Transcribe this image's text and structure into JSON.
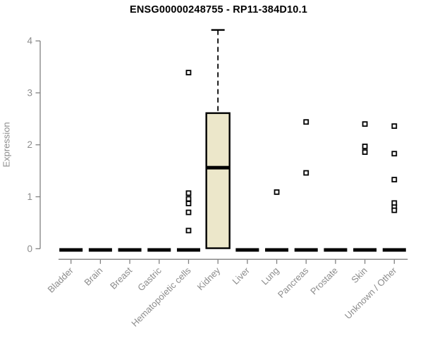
{
  "chart_data": {
    "type": "boxplot",
    "title": "ENSG00000248755 - RP11-384D10.1",
    "ylabel": "Expression",
    "xlabel": "",
    "ylim": [
      0,
      4.3
    ],
    "yticks": [
      0,
      1,
      2,
      3,
      4
    ],
    "grid": false,
    "legend": false,
    "categories": [
      "Bladder",
      "Brain",
      "Breast",
      "Gastric",
      "Hematopoietic cells",
      "Kidney",
      "Liver",
      "Lung",
      "Pancreas",
      "Prostate",
      "Skin",
      "Unknown / Other"
    ],
    "series": [
      {
        "category": "Bladder",
        "q1": 0,
        "median": 0,
        "q3": 0,
        "whisker_low": 0,
        "whisker_high": 0,
        "outliers": []
      },
      {
        "category": "Brain",
        "q1": 0,
        "median": 0,
        "q3": 0,
        "whisker_low": 0,
        "whisker_high": 0,
        "outliers": []
      },
      {
        "category": "Breast",
        "q1": 0,
        "median": 0,
        "q3": 0,
        "whisker_low": 0,
        "whisker_high": 0,
        "outliers": []
      },
      {
        "category": "Gastric",
        "q1": 0,
        "median": 0,
        "q3": 0,
        "whisker_low": 0,
        "whisker_high": 0,
        "outliers": []
      },
      {
        "category": "Hematopoietic cells",
        "q1": 0,
        "median": 0,
        "q3": 0,
        "whisker_low": 0,
        "whisker_high": 0,
        "outliers": [
          3.39,
          1.07,
          0.96,
          0.87,
          0.7,
          0.35
        ]
      },
      {
        "category": "Kidney",
        "q1": 0.01,
        "median": 1.56,
        "q3": 2.61,
        "whisker_low": 0.01,
        "whisker_high": 4.21,
        "outliers": []
      },
      {
        "category": "Liver",
        "q1": 0,
        "median": 0,
        "q3": 0,
        "whisker_low": 0,
        "whisker_high": 0,
        "outliers": []
      },
      {
        "category": "Lung",
        "q1": 0,
        "median": 0,
        "q3": 0,
        "whisker_low": 0,
        "whisker_high": 0,
        "outliers": [
          1.09
        ]
      },
      {
        "category": "Pancreas",
        "q1": 0,
        "median": 0,
        "q3": 0,
        "whisker_low": 0,
        "whisker_high": 0,
        "outliers": [
          2.44,
          1.46
        ]
      },
      {
        "category": "Prostate",
        "q1": 0,
        "median": 0,
        "q3": 0,
        "whisker_low": 0,
        "whisker_high": 0,
        "outliers": []
      },
      {
        "category": "Skin",
        "q1": 0,
        "median": 0,
        "q3": 0,
        "whisker_low": 0,
        "whisker_high": 0,
        "outliers": [
          2.4,
          1.97,
          1.86
        ]
      },
      {
        "category": "Unknown / Other",
        "q1": 0,
        "median": 0,
        "q3": 0,
        "whisker_low": 0,
        "whisker_high": 0,
        "outliers": [
          2.36,
          1.83,
          1.33,
          0.88,
          0.8,
          0.74
        ]
      }
    ],
    "colors": {
      "box_fill": "#ece7ca",
      "box_stroke": "#000000",
      "median": "#000000",
      "whisker": "#000000",
      "outlier_fill": "#ffffff",
      "outlier_stroke": "#000000",
      "axis": "#818181",
      "tick_label": "#8c8c8c",
      "title": "#000000"
    }
  }
}
